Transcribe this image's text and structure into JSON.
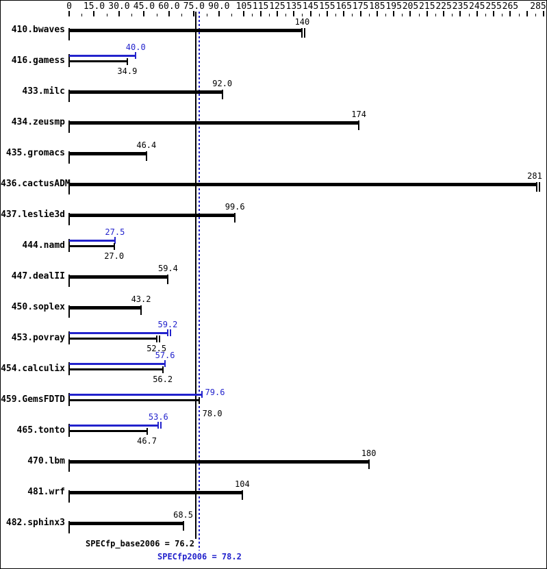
{
  "colors": {
    "base": "#000000",
    "peak": "#2222cc",
    "background": "#ffffff"
  },
  "chart_data": {
    "type": "bar",
    "orientation": "horizontal",
    "title": "",
    "xlabel": "",
    "ylabel": "",
    "xlim": [
      0,
      287
    ],
    "grid": false,
    "legend_position": "none",
    "axis": {
      "tick_labels": [
        "0",
        "15.0",
        "30.0",
        "45.0",
        "60.0",
        "75.0",
        "90.0",
        "105",
        "115",
        "125",
        "135",
        "145",
        "155",
        "165",
        "175",
        "185",
        "195",
        "205",
        "215",
        "225",
        "235",
        "245",
        "255",
        "265",
        "285"
      ],
      "tick_values": [
        0,
        15,
        30,
        45,
        60,
        75,
        90,
        105,
        115,
        125,
        135,
        145,
        155,
        165,
        175,
        185,
        195,
        205,
        215,
        225,
        235,
        245,
        255,
        265,
        285
      ],
      "unlabeled_major_ticks": [
        275
      ]
    },
    "series": [
      {
        "name": "peak (SPECfp2006)",
        "color": "#2222cc"
      },
      {
        "name": "base (SPECfp_base2006)",
        "color": "#000000"
      }
    ],
    "benchmarks": [
      {
        "name": "410.bwaves",
        "base": 140,
        "base_label": "140",
        "base_double_cap": true
      },
      {
        "name": "416.gamess",
        "peak": 40.0,
        "peak_label": "40.0",
        "base": 34.9,
        "base_label": "34.9"
      },
      {
        "name": "433.milc",
        "base": 92.0,
        "base_label": "92.0"
      },
      {
        "name": "434.zeusmp",
        "base": 174,
        "base_label": "174"
      },
      {
        "name": "435.gromacs",
        "base": 46.4,
        "base_label": "46.4"
      },
      {
        "name": "436.cactusADM",
        "base": 281,
        "base_label": "281",
        "base_double_cap": true
      },
      {
        "name": "437.leslie3d",
        "base": 99.6,
        "base_label": "99.6"
      },
      {
        "name": "444.namd",
        "peak": 27.5,
        "peak_label": "27.5",
        "base": 27.0,
        "base_label": "27.0"
      },
      {
        "name": "447.dealII",
        "base": 59.4,
        "base_label": "59.4"
      },
      {
        "name": "450.soplex",
        "base": 43.2,
        "base_label": "43.2"
      },
      {
        "name": "453.povray",
        "peak": 59.2,
        "peak_label": "59.2",
        "peak_double_cap": true,
        "base": 52.5,
        "base_label": "52.5",
        "base_double_cap": true
      },
      {
        "name": "454.calculix",
        "peak": 57.6,
        "peak_label": "57.6",
        "base": 56.2,
        "base_label": "56.2"
      },
      {
        "name": "459.GemsFDTD",
        "peak": 79.6,
        "peak_label": "79.6",
        "base": 78.0,
        "base_label": "78.0",
        "labels_right": true
      },
      {
        "name": "465.tonto",
        "peak": 53.6,
        "peak_label": "53.6",
        "peak_double_cap": true,
        "base": 46.7,
        "base_label": "46.7"
      },
      {
        "name": "470.lbm",
        "base": 180,
        "base_label": "180"
      },
      {
        "name": "481.wrf",
        "base": 104,
        "base_label": "104"
      },
      {
        "name": "482.sphinx3",
        "base": 68.5,
        "base_label": "68.5"
      }
    ],
    "means": {
      "base": {
        "value": 76.2,
        "label": "SPECfp_base2006 = 76.2"
      },
      "peak": {
        "value": 78.2,
        "label": "SPECfp2006 = 78.2"
      }
    }
  }
}
